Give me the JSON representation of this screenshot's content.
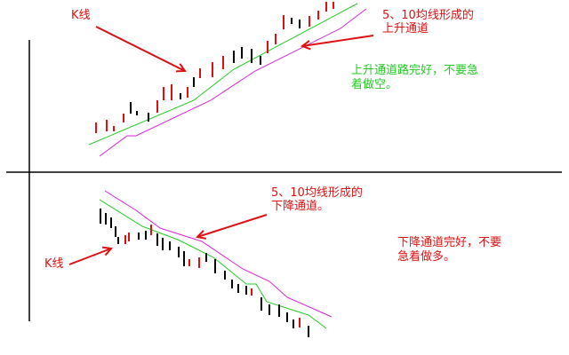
{
  "colors": {
    "up_candle": "#e01010",
    "down_candle": "#000000",
    "ma5": "#22cc22",
    "ma10": "#dd22dd",
    "arrow": "#e01010",
    "axis": "#000000"
  },
  "upper_panel": {
    "k_label": "K线",
    "channel_label": [
      "5、10均线形成的",
      "上升通道"
    ],
    "advice": [
      "上升通道路完好，不要急",
      "着做空。"
    ]
  },
  "lower_panel": {
    "k_label": "K线",
    "channel_label": [
      "5、10均线形成的",
      "下降通道。"
    ],
    "advice": [
      "下降通道完好，不要",
      "急着做多。"
    ]
  }
}
